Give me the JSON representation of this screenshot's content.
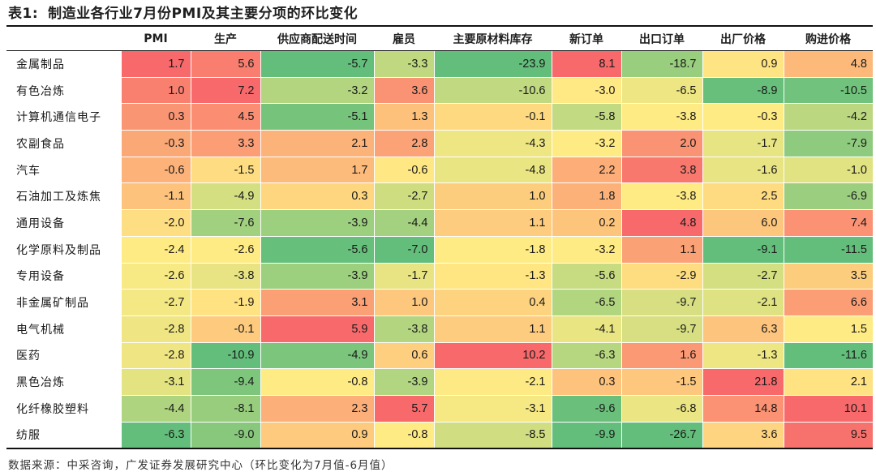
{
  "title_prefix": "表1:",
  "title_text": "制造业各行业7月份PMI及其主要分项的环比变化",
  "source_note": "数据来源：中采咨询，广发证券发展研究中心（环比变化为7月值-6月值）",
  "chart_data": {
    "type": "heatmap",
    "title": "制造业各行业7月份PMI及其主要分项的环比变化",
    "columns": [
      "PMI",
      "生产",
      "供应商配送时间",
      "雇员",
      "主要原材料库存",
      "新订单",
      "出口订单",
      "出厂价格",
      "购进价格"
    ],
    "rows": [
      "金属制品",
      "有色冶炼",
      "计算机通信电子",
      "农副食品",
      "汽车",
      "石油加工及炼焦",
      "通用设备",
      "化学原料及制品",
      "专用设备",
      "非金属矿制品",
      "电气机械",
      "医药",
      "黑色冶炼",
      "化纤橡胶塑料",
      "纺服"
    ],
    "values": [
      [
        1.7,
        5.6,
        -5.7,
        -3.3,
        -23.9,
        8.1,
        -18.7,
        0.9,
        4.8
      ],
      [
        1.0,
        7.2,
        -3.2,
        3.6,
        -10.6,
        -3.0,
        -6.5,
        -8.9,
        -10.5
      ],
      [
        0.3,
        4.5,
        -5.1,
        1.3,
        -0.1,
        -5.8,
        -3.8,
        -0.3,
        -4.2
      ],
      [
        -0.3,
        3.3,
        2.1,
        2.8,
        -4.3,
        -3.2,
        2.0,
        -1.7,
        -7.9
      ],
      [
        -0.6,
        -1.5,
        1.7,
        -0.6,
        -4.8,
        2.2,
        3.8,
        -1.6,
        -1.0
      ],
      [
        -1.1,
        -4.9,
        0.3,
        -2.7,
        1.0,
        1.8,
        -3.8,
        2.5,
        -6.9
      ],
      [
        -2.0,
        -7.6,
        -3.9,
        -4.4,
        1.1,
        0.2,
        4.8,
        6.0,
        7.4
      ],
      [
        -2.4,
        -2.6,
        -5.6,
        -7.0,
        -1.8,
        -3.2,
        1.1,
        -9.1,
        -11.5
      ],
      [
        -2.6,
        -3.8,
        -3.9,
        -1.7,
        -1.3,
        -5.6,
        -2.9,
        -2.7,
        3.5
      ],
      [
        -2.7,
        -1.9,
        3.1,
        1.0,
        0.4,
        -6.5,
        -9.7,
        -2.1,
        6.6
      ],
      [
        -2.8,
        -0.1,
        5.9,
        -3.8,
        1.1,
        -4.1,
        -9.7,
        6.3,
        1.5
      ],
      [
        -2.8,
        -10.9,
        -4.9,
        0.6,
        10.2,
        -6.3,
        1.6,
        -1.3,
        -11.6
      ],
      [
        -3.1,
        -9.4,
        -0.8,
        -3.9,
        -2.1,
        0.3,
        -1.5,
        21.8,
        2.1
      ],
      [
        -4.4,
        -8.1,
        2.3,
        5.7,
        -3.1,
        -9.6,
        -6.8,
        14.8,
        10.1
      ],
      [
        -6.3,
        -9.0,
        0.9,
        -0.8,
        -8.5,
        -9.9,
        -26.7,
        3.6,
        9.5
      ]
    ],
    "color_scale": {
      "low": "#63be7b",
      "mid": "#ffeb84",
      "high": "#f8696b",
      "per_column": true
    }
  }
}
